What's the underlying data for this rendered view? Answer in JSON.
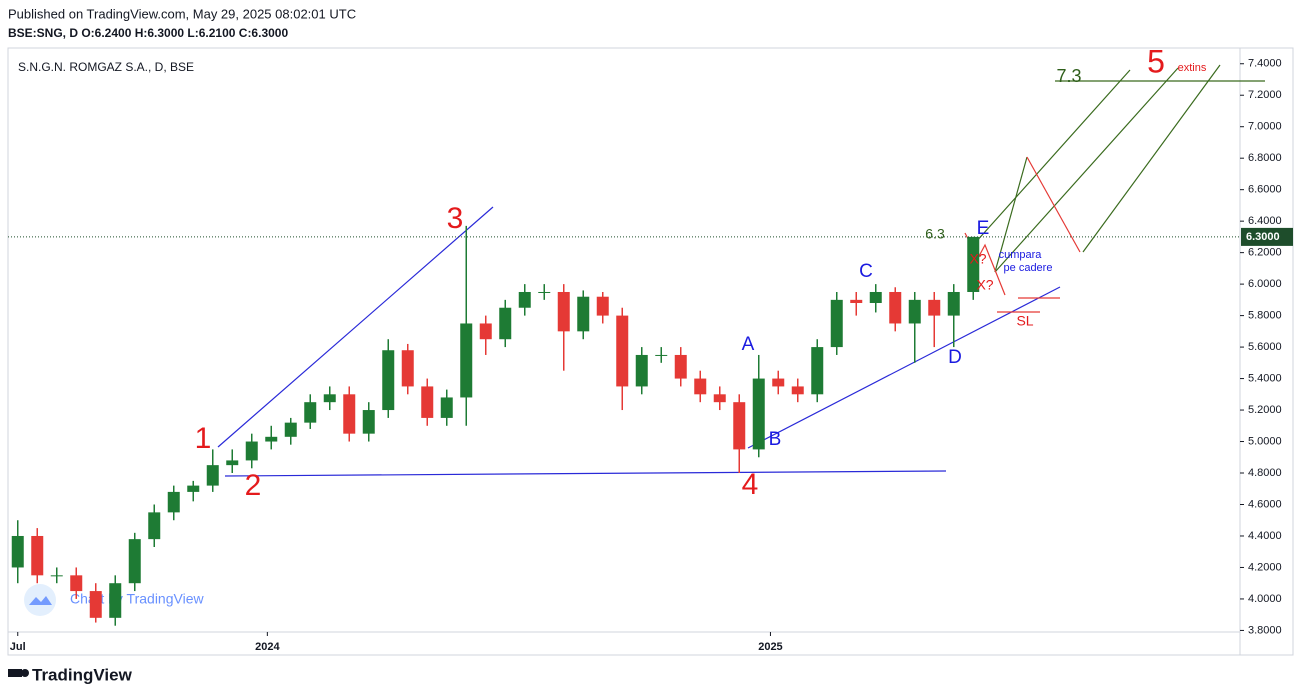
{
  "header": {
    "published": "Published on TradingView.com, May 29, 2025 08:02:01 UTC",
    "quote": "BSE:SNG, D  O:6.2400 H:6.3000 L:6.2100 C:6.3000"
  },
  "chart_data": {
    "type": "candlestick",
    "title": "S.N.G.N. ROMGAZ S.A., D, BSE",
    "categories": [
      null,
      null,
      null,
      null,
      null,
      null,
      null,
      null,
      null,
      null,
      null,
      null,
      null,
      null,
      null,
      null,
      null,
      null,
      null,
      null,
      null,
      null,
      null,
      null,
      null,
      null,
      null,
      null,
      null,
      null,
      null,
      null,
      null,
      null,
      null,
      null,
      null,
      null,
      null,
      null,
      null,
      null,
      null,
      null,
      null,
      null,
      null,
      null,
      null,
      null
    ],
    "open": [
      4.2,
      4.4,
      4.15,
      4.15,
      4.05,
      3.88,
      4.1,
      4.38,
      4.55,
      4.68,
      4.72,
      4.85,
      4.88,
      5.0,
      5.03,
      5.12,
      5.25,
      5.3,
      5.05,
      5.2,
      5.58,
      5.35,
      5.15,
      5.28,
      5.75,
      5.65,
      5.85,
      5.95,
      5.95,
      5.7,
      5.92,
      5.8,
      5.35,
      5.55,
      5.55,
      5.4,
      5.3,
      5.25,
      4.95,
      5.4,
      5.35,
      5.3,
      5.6,
      5.9,
      5.88,
      5.95,
      5.75,
      5.9,
      5.8,
      5.95
    ],
    "high": [
      4.5,
      4.45,
      4.2,
      4.2,
      4.1,
      4.15,
      4.42,
      4.6,
      4.72,
      4.75,
      4.95,
      4.95,
      5.05,
      5.1,
      5.15,
      5.3,
      5.35,
      5.35,
      5.25,
      5.65,
      5.62,
      5.4,
      5.33,
      6.37,
      5.8,
      5.9,
      6.0,
      6.0,
      6.0,
      5.96,
      5.95,
      5.85,
      5.6,
      5.6,
      5.6,
      5.45,
      5.35,
      5.3,
      5.55,
      5.45,
      5.4,
      5.65,
      5.95,
      5.95,
      6.0,
      5.98,
      5.95,
      5.95,
      6.0,
      6.3
    ],
    "low": [
      4.1,
      4.1,
      4.1,
      4.0,
      3.85,
      3.83,
      4.05,
      4.33,
      4.5,
      4.62,
      4.68,
      4.8,
      4.83,
      4.95,
      4.98,
      5.08,
      5.2,
      5.0,
      5.0,
      5.15,
      5.3,
      5.1,
      5.1,
      5.1,
      5.55,
      5.6,
      5.8,
      5.9,
      5.45,
      5.65,
      5.75,
      5.2,
      5.3,
      5.5,
      5.35,
      5.25,
      5.2,
      4.8,
      4.9,
      5.3,
      5.25,
      5.25,
      5.55,
      5.8,
      5.82,
      5.7,
      5.5,
      5.6,
      5.6,
      5.9
    ],
    "close": [
      4.4,
      4.15,
      4.15,
      4.05,
      3.88,
      4.1,
      4.38,
      4.55,
      4.68,
      4.72,
      4.85,
      4.88,
      5.0,
      5.03,
      5.12,
      5.25,
      5.3,
      5.05,
      5.2,
      5.58,
      5.35,
      5.15,
      5.28,
      5.75,
      5.65,
      5.85,
      5.95,
      5.95,
      5.7,
      5.92,
      5.8,
      5.35,
      5.55,
      5.55,
      5.4,
      5.3,
      5.25,
      4.95,
      5.4,
      5.35,
      5.3,
      5.6,
      5.9,
      5.88,
      5.95,
      5.75,
      5.9,
      5.8,
      5.95,
      6.3
    ],
    "up_color": "#1e7b34",
    "down_color": "#e53935",
    "ylim": [
      3.79,
      7.5
    ],
    "yticks": [
      {
        "value": 3.8,
        "label": "3.8000"
      },
      {
        "value": 4.0,
        "label": "4.0000"
      },
      {
        "value": 4.2,
        "label": "4.2000"
      },
      {
        "value": 4.4,
        "label": "4.4000"
      },
      {
        "value": 4.6,
        "label": "4.6000"
      },
      {
        "value": 4.8,
        "label": "4.8000"
      },
      {
        "value": 5.0,
        "label": "5.0000"
      },
      {
        "value": 5.2,
        "label": "5.2000"
      },
      {
        "value": 5.4,
        "label": "5.4000"
      },
      {
        "value": 5.6,
        "label": "5.6000"
      },
      {
        "value": 5.8,
        "label": "5.8000"
      },
      {
        "value": 6.0,
        "label": "6.0000"
      },
      {
        "value": 6.2,
        "label": "6.2000"
      },
      {
        "value": 6.4,
        "label": "6.4000"
      },
      {
        "value": 6.6,
        "label": "6.6000"
      },
      {
        "value": 6.8,
        "label": "6.8000"
      },
      {
        "value": 7.0,
        "label": "7.0000"
      },
      {
        "value": 7.2,
        "label": "7.2000"
      },
      {
        "value": 7.4,
        "label": "7.4000"
      }
    ],
    "xticks": [
      {
        "value": 0,
        "label": "Jul"
      },
      {
        "value": 12.8,
        "label": "2024"
      },
      {
        "value": 38.6,
        "label": "2025"
      }
    ],
    "last_price": {
      "value": 6.3,
      "label": "6.3000"
    },
    "last_price_color": "#1e4d2b",
    "annotations": [
      "1",
      "2",
      "3",
      "4",
      "5",
      "A",
      "B",
      "C",
      "D",
      "E",
      "6.3",
      "7.3",
      "extins",
      "cumpara",
      "pe cadere",
      "X?",
      "X?",
      "SL"
    ],
    "watermark": "Chart by TradingView"
  },
  "footer": {
    "brand": "TradingView"
  }
}
